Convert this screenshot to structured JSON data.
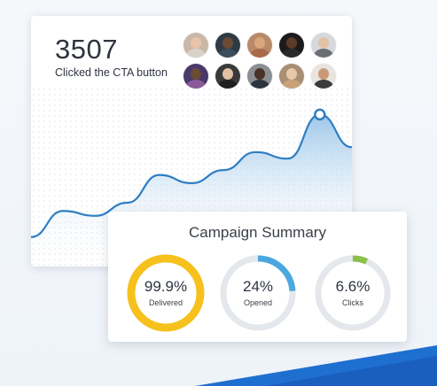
{
  "metric": {
    "value": "3507",
    "label": "Clicked the CTA button"
  },
  "avatars": [
    {
      "icon": "person-avatar-icon",
      "bg": "#c9b8a8",
      "head": "#e8c4a8",
      "body": "#d9d2c8"
    },
    {
      "icon": "person-avatar-icon",
      "bg": "#2f3b44",
      "head": "#6b4a36",
      "body": "#3b4d5a"
    },
    {
      "icon": "person-avatar-icon",
      "bg": "#b98a6a",
      "head": "#d9a57c",
      "body": "#a86a48"
    },
    {
      "icon": "person-avatar-icon",
      "bg": "#1b1b1b",
      "head": "#5b3a26",
      "body": "#2a2a2a"
    },
    {
      "icon": "person-avatar-icon",
      "bg": "#d6d9dc",
      "head": "#e2c2a4",
      "body": "#6b6f73"
    },
    {
      "icon": "person-avatar-icon",
      "bg": "#4a3a6a",
      "head": "#6b4a36",
      "body": "#8a5a9a"
    },
    {
      "icon": "person-avatar-icon",
      "bg": "#3a3a3a",
      "head": "#e2c2a4",
      "body": "#1f1f1f"
    },
    {
      "icon": "person-avatar-icon",
      "bg": "#8b8f93",
      "head": "#4a3226",
      "body": "#2c3440"
    },
    {
      "icon": "person-avatar-icon",
      "bg": "#a88f74",
      "head": "#e6c9a8",
      "body": "#c9a27a"
    },
    {
      "icon": "person-avatar-icon",
      "bg": "#e9e4de",
      "head": "#c89a7a",
      "body": "#3a3a3a"
    }
  ],
  "chart_data": {
    "type": "area",
    "x": [
      0,
      1,
      2,
      3,
      4,
      5,
      6,
      7,
      8,
      9,
      10
    ],
    "values": [
      1.8,
      3.4,
      3.1,
      3.9,
      5.6,
      5.1,
      5.9,
      7.0,
      6.6,
      9.3,
      7.3
    ],
    "highlight_index": 9,
    "ylim": [
      0,
      11
    ],
    "line_color": "#2f7ec2",
    "fill_top_color": "#9ec7ea",
    "fill_bottom_color": "#ffffff"
  },
  "summary": {
    "title": "Campaign Summary",
    "gauges": [
      {
        "pct": "99.9%",
        "label": "Delivered",
        "fraction": 0.999,
        "color": "#f6c11c",
        "thick": true
      },
      {
        "pct": "24%",
        "label": "Opened",
        "fraction": 0.24,
        "color": "#4aa8de",
        "thick": false
      },
      {
        "pct": "6.6%",
        "label": "Clicks",
        "fraction": 0.066,
        "color": "#8cc04a",
        "thick": false
      }
    ],
    "track_color": "#e4e7eb"
  },
  "colors": {
    "accent_blue": "#1f6fd1",
    "dark_blue": "#1555b5"
  }
}
